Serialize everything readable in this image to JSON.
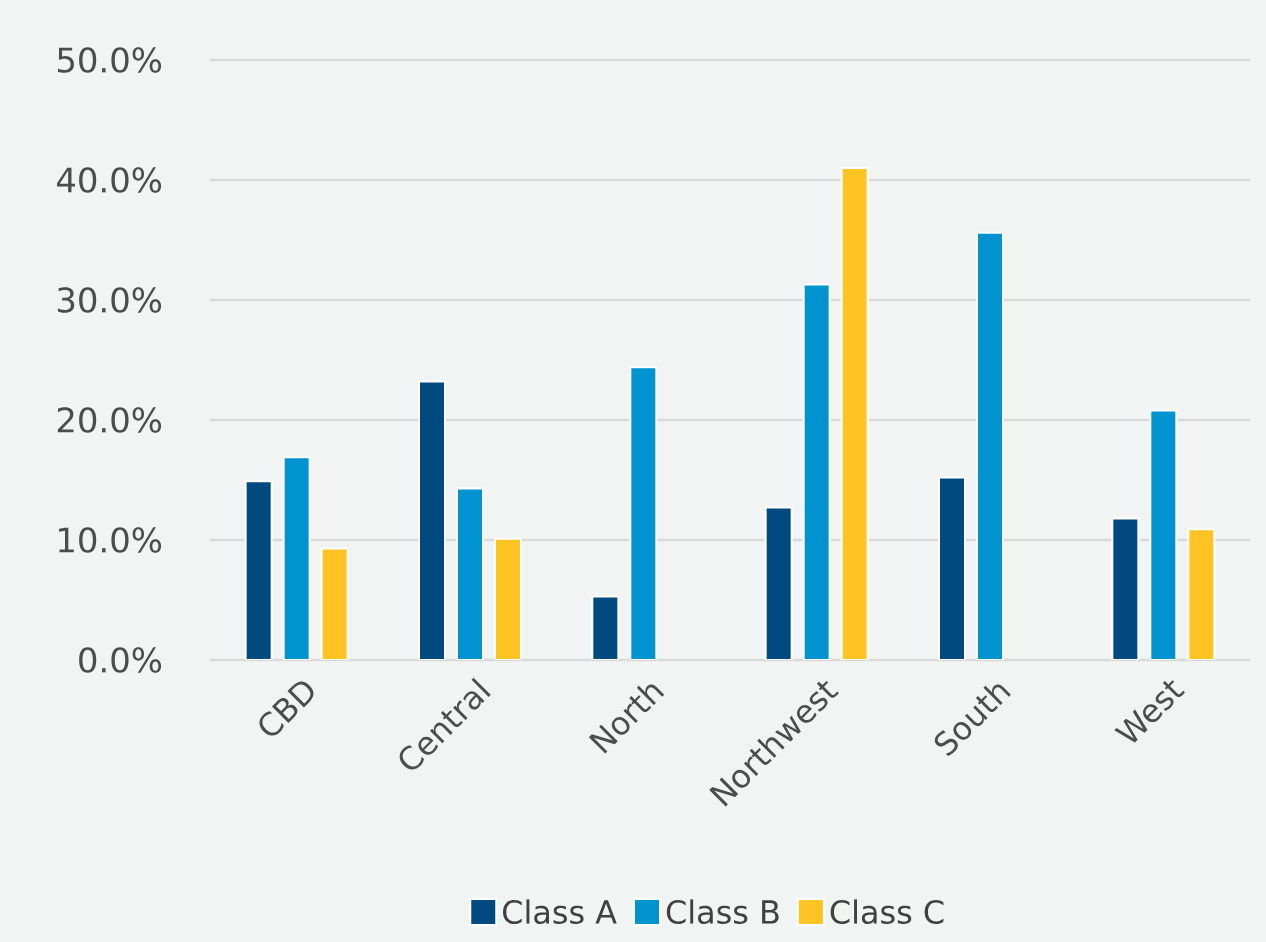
{
  "chart_data": {
    "type": "bar",
    "categories": [
      "CBD",
      "Central",
      "North",
      "Northwest",
      "South",
      "West"
    ],
    "series": [
      {
        "name": "Class A",
        "color": "#004a80",
        "values": [
          14.9,
          23.2,
          5.3,
          12.7,
          15.2,
          11.8
        ]
      },
      {
        "name": "Class B",
        "color": "#0093d0",
        "values": [
          16.9,
          14.3,
          24.4,
          31.3,
          35.6,
          20.8
        ]
      },
      {
        "name": "Class C",
        "color": "#ffc324",
        "values": [
          9.3,
          10.1,
          null,
          41.0,
          null,
          10.9
        ]
      }
    ],
    "ylim": [
      0,
      50
    ],
    "yticks": [
      {
        "value": 0,
        "label": "0.0%"
      },
      {
        "value": 10,
        "label": "10.0%"
      },
      {
        "value": 20,
        "label": "20.0%"
      },
      {
        "value": 30,
        "label": "30.0%"
      },
      {
        "value": 40,
        "label": "40.0%"
      },
      {
        "value": 50,
        "label": "50.0%"
      }
    ],
    "grid": "y",
    "legend": "bottom"
  }
}
